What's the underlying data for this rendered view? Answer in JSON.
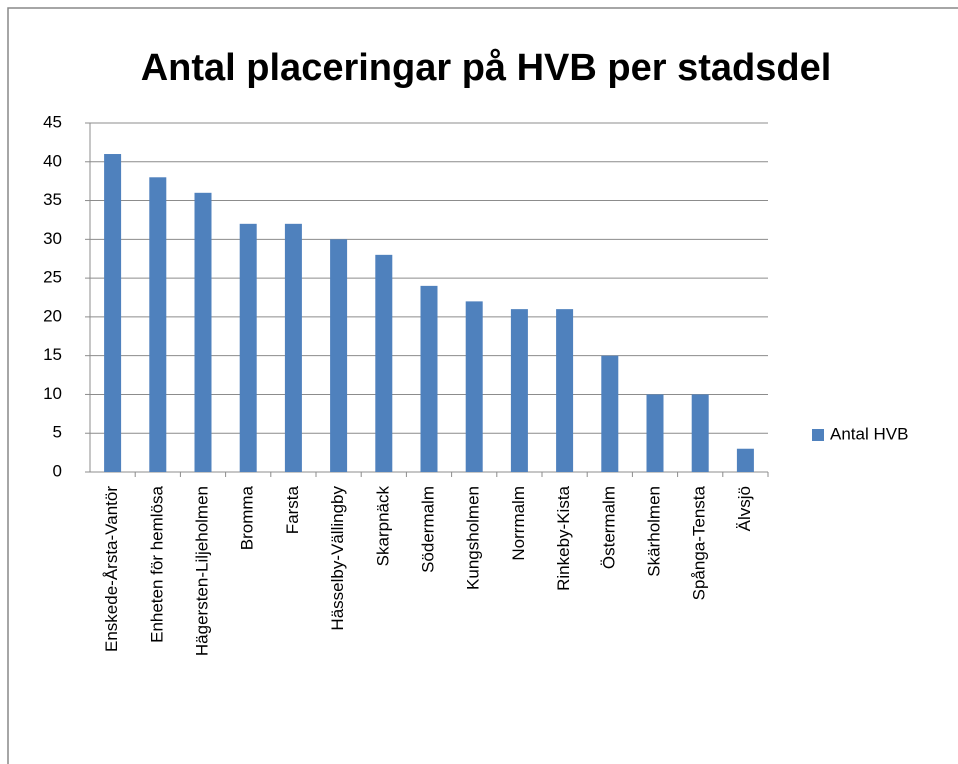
{
  "chart_data": {
    "type": "bar",
    "title": "Antal placeringar på HVB per stadsdel",
    "categories": [
      "Enskede-Årsta-Vantör",
      "Enheten för hemlösa",
      "Hägersten-Liljeholmen",
      "Bromma",
      "Farsta",
      "Hässelby-Vällingby",
      "Skarpnäck",
      "Södermalm",
      "Kungsholmen",
      "Norrmalm",
      "Rinkeby-Kista",
      "Östermalm",
      "Skärholmen",
      "Spånga-Tensta",
      "Älvsjö"
    ],
    "series": [
      {
        "name": "Antal HVB",
        "color": "#4f81bd",
        "values": [
          41,
          38,
          36,
          32,
          32,
          30,
          28,
          24,
          22,
          21,
          21,
          15,
          10,
          10,
          3
        ]
      }
    ],
    "ylim": [
      0,
      45
    ],
    "yticks": [
      0,
      5,
      10,
      15,
      20,
      25,
      30,
      35,
      40,
      45
    ],
    "grid": true,
    "legend": "right"
  }
}
